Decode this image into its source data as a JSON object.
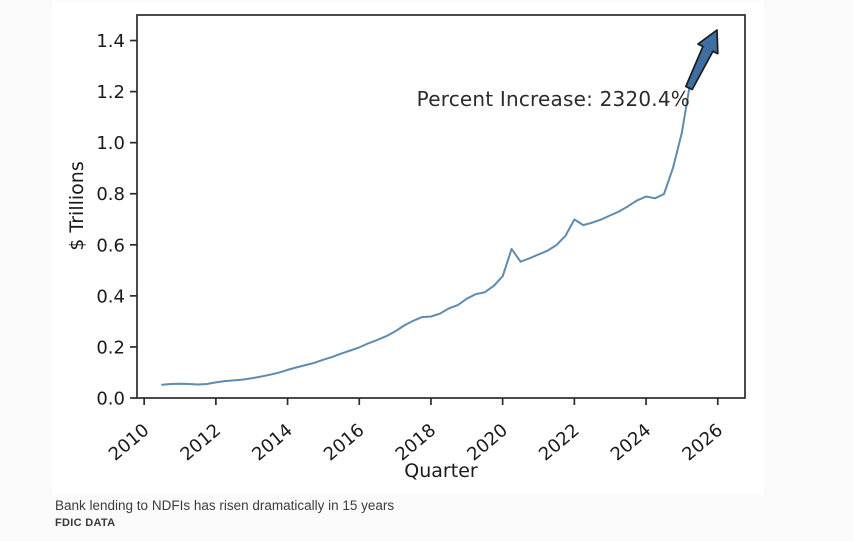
{
  "page": {
    "caption": "Bank lending to NDFIs has risen dramatically in 15 years",
    "source": "FDIC DATA"
  },
  "chart_data": {
    "type": "line",
    "title": "",
    "xlabel": "Quarter",
    "ylabel": "$ Trillions",
    "annotation": "Percent Increase: 2320.4%",
    "xlim": [
      2009.8,
      2026.76
    ],
    "ylim": [
      0,
      1.5
    ],
    "xticks": [
      2010,
      2012,
      2014,
      2016,
      2018,
      2020,
      2022,
      2024,
      2026
    ],
    "yticks": [
      0.0,
      0.2,
      0.4,
      0.6,
      0.8,
      1.0,
      1.2,
      1.4
    ],
    "grid": false,
    "legend_position": "none",
    "line_color": "#5f8bb0",
    "arrow_color": "#3d6fa3",
    "arrow_outline": "#1c1c1c",
    "series": [
      {
        "name": "Bank lending to NDFIs ($ trillions)",
        "quarters": [
          "2010Q3",
          "2010Q4",
          "2011Q1",
          "2011Q2",
          "2011Q3",
          "2011Q4",
          "2012Q1",
          "2012Q2",
          "2012Q3",
          "2012Q4",
          "2013Q1",
          "2013Q2",
          "2013Q3",
          "2013Q4",
          "2014Q1",
          "2014Q2",
          "2014Q3",
          "2014Q4",
          "2015Q1",
          "2015Q2",
          "2015Q3",
          "2015Q4",
          "2016Q1",
          "2016Q2",
          "2016Q3",
          "2016Q4",
          "2017Q1",
          "2017Q2",
          "2017Q3",
          "2017Q4",
          "2018Q1",
          "2018Q2",
          "2018Q3",
          "2018Q4",
          "2019Q1",
          "2019Q2",
          "2019Q3",
          "2019Q4",
          "2020Q1",
          "2020Q2",
          "2020Q3",
          "2020Q4",
          "2021Q1",
          "2021Q2",
          "2021Q3",
          "2021Q4",
          "2022Q1",
          "2022Q2",
          "2022Q3",
          "2022Q4",
          "2023Q1",
          "2023Q2",
          "2023Q3",
          "2023Q4",
          "2024Q1",
          "2024Q2",
          "2024Q3",
          "2024Q4",
          "2025Q1",
          "2025Q2"
        ],
        "values": [
          0.0517,
          0.055,
          0.056,
          0.055,
          0.053,
          0.055,
          0.061,
          0.066,
          0.069,
          0.072,
          0.077,
          0.084,
          0.091,
          0.099,
          0.11,
          0.12,
          0.129,
          0.138,
          0.15,
          0.161,
          0.174,
          0.186,
          0.198,
          0.214,
          0.227,
          0.242,
          0.261,
          0.284,
          0.302,
          0.317,
          0.319,
          0.33,
          0.351,
          0.364,
          0.389,
          0.407,
          0.414,
          0.439,
          0.477,
          0.584,
          0.534,
          0.547,
          0.562,
          0.577,
          0.599,
          0.635,
          0.699,
          0.677,
          0.687,
          0.699,
          0.715,
          0.731,
          0.751,
          0.774,
          0.789,
          0.782,
          0.799,
          0.9,
          1.04,
          1.2514
        ]
      }
    ]
  }
}
